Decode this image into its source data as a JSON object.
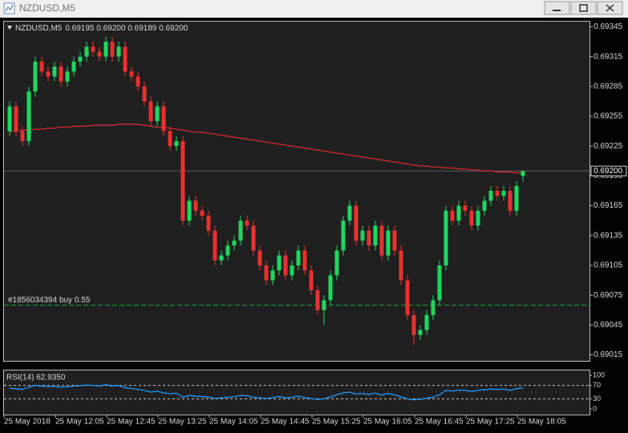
{
  "chart_data": {
    "type": "candlestick",
    "title": "NZDUSD,M5",
    "header_ohlc": "0.69195 0.69200 0.69189 0.69200",
    "categories": [
      "25 May 2018",
      null,
      null,
      null,
      null,
      null,
      null,
      null,
      "25 May 12:05",
      null,
      null,
      null,
      null,
      null,
      null,
      null,
      "25 May 12:45",
      null,
      null,
      null,
      null,
      null,
      null,
      null,
      "25 May 13:25",
      null,
      null,
      null,
      null,
      null,
      null,
      null,
      "25 May 14:05",
      null,
      null,
      null,
      null,
      null,
      null,
      null,
      "25 May 14:45",
      null,
      null,
      null,
      null,
      null,
      null,
      null,
      "25 May 15:25",
      null,
      null,
      null,
      null,
      null,
      null,
      null,
      "25 May 16:05",
      null,
      null,
      null,
      null,
      null,
      null,
      null,
      "25 May 16:45",
      null,
      null,
      null,
      null,
      null,
      null,
      null,
      "25 May 17:25",
      null,
      null,
      null,
      null,
      null,
      null,
      null,
      "25 May 18:05"
    ],
    "open": [
      0.6924,
      0.69265,
      0.6924,
      0.6923,
      0.6928,
      0.6931,
      0.693,
      0.69295,
      0.69305,
      0.6929,
      0.693,
      0.6931,
      0.69315,
      0.69325,
      0.6932,
      0.69315,
      0.6933,
      0.69315,
      0.69325,
      0.693,
      0.69295,
      0.69285,
      0.6927,
      0.6925,
      0.69265,
      0.6924,
      0.69225,
      0.6923,
      0.6915,
      0.6917,
      0.6916,
      0.69155,
      0.6914,
      0.6911,
      0.69115,
      0.69125,
      0.6913,
      0.6915,
      0.69145,
      0.6912,
      0.69105,
      0.6909,
      0.691,
      0.69115,
      0.69095,
      0.69105,
      0.6912,
      0.691,
      0.6908,
      0.6906,
      0.6907,
      0.69095,
      0.6912,
      0.6915,
      0.69165,
      0.6913,
      0.6914,
      0.69125,
      0.69145,
      0.69115,
      0.6914,
      0.6912,
      0.6909,
      0.69055,
      0.69035,
      0.6904,
      0.69055,
      0.6907,
      0.69105,
      0.6916,
      0.6915,
      0.69165,
      0.6916,
      0.69145,
      0.6916,
      0.6917,
      0.6918,
      0.69175,
      0.6918,
      0.6916,
      0.69195
    ],
    "high": [
      0.6927,
      0.6927,
      0.69245,
      0.69285,
      0.69315,
      0.69315,
      0.69305,
      0.6931,
      0.6931,
      0.69305,
      0.69315,
      0.6932,
      0.6933,
      0.6933,
      0.69325,
      0.69335,
      0.69335,
      0.6933,
      0.6933,
      0.69305,
      0.693,
      0.6929,
      0.69275,
      0.6927,
      0.6927,
      0.69245,
      0.69235,
      0.69235,
      0.69175,
      0.69175,
      0.69165,
      0.6916,
      0.69145,
      0.6912,
      0.6913,
      0.69135,
      0.69155,
      0.69155,
      0.6915,
      0.69125,
      0.6911,
      0.69105,
      0.6912,
      0.6912,
      0.6911,
      0.69125,
      0.69125,
      0.69105,
      0.69085,
      0.69075,
      0.691,
      0.69125,
      0.69155,
      0.6917,
      0.6917,
      0.69145,
      0.69145,
      0.6915,
      0.6915,
      0.69145,
      0.69145,
      0.69125,
      0.69095,
      0.6906,
      0.69045,
      0.6906,
      0.69075,
      0.6911,
      0.69165,
      0.69165,
      0.6917,
      0.6917,
      0.69165,
      0.69165,
      0.69175,
      0.69185,
      0.69185,
      0.69185,
      0.69185,
      0.6919,
      0.692
    ],
    "low": [
      0.69235,
      0.69235,
      0.69225,
      0.69225,
      0.69275,
      0.69295,
      0.6929,
      0.6929,
      0.69285,
      0.69285,
      0.69295,
      0.69305,
      0.6931,
      0.69315,
      0.6931,
      0.6931,
      0.6931,
      0.6931,
      0.69295,
      0.6929,
      0.6928,
      0.69265,
      0.69245,
      0.69245,
      0.69235,
      0.6922,
      0.6922,
      0.69145,
      0.69145,
      0.69155,
      0.6915,
      0.69135,
      0.69105,
      0.69105,
      0.6911,
      0.6912,
      0.69125,
      0.6914,
      0.69115,
      0.691,
      0.69085,
      0.69085,
      0.69095,
      0.6909,
      0.6909,
      0.691,
      0.69095,
      0.69075,
      0.69055,
      0.69045,
      0.69065,
      0.6909,
      0.69115,
      0.69145,
      0.69125,
      0.69125,
      0.6912,
      0.6912,
      0.6911,
      0.6911,
      0.69115,
      0.69085,
      0.6905,
      0.69025,
      0.6903,
      0.69035,
      0.6905,
      0.69065,
      0.691,
      0.69145,
      0.69145,
      0.69155,
      0.6914,
      0.6914,
      0.69155,
      0.69165,
      0.6917,
      0.6917,
      0.69155,
      0.69155,
      0.69189
    ],
    "close": [
      0.69265,
      0.6924,
      0.6923,
      0.6928,
      0.6931,
      0.693,
      0.69295,
      0.69305,
      0.6929,
      0.693,
      0.6931,
      0.69315,
      0.69325,
      0.6932,
      0.69315,
      0.6933,
      0.69315,
      0.69325,
      0.693,
      0.69295,
      0.69285,
      0.6927,
      0.6925,
      0.69265,
      0.6924,
      0.69225,
      0.6923,
      0.6915,
      0.6917,
      0.6916,
      0.69155,
      0.6914,
      0.6911,
      0.69115,
      0.69125,
      0.6913,
      0.6915,
      0.69145,
      0.6912,
      0.69105,
      0.6909,
      0.691,
      0.69115,
      0.69095,
      0.69105,
      0.6912,
      0.691,
      0.6908,
      0.6906,
      0.6907,
      0.69095,
      0.6912,
      0.6915,
      0.69165,
      0.6913,
      0.6914,
      0.69125,
      0.69145,
      0.69115,
      0.6914,
      0.6912,
      0.6909,
      0.69055,
      0.69035,
      0.6904,
      0.69055,
      0.6907,
      0.69105,
      0.6916,
      0.6915,
      0.69165,
      0.6916,
      0.69145,
      0.6916,
      0.6917,
      0.6918,
      0.69175,
      0.6918,
      0.6916,
      0.69185,
      0.692
    ],
    "up_color": "#1ed760",
    "down_color": "#e8312f",
    "ylim": [
      0.69009,
      0.69351
    ],
    "yticks": [
      0.69345,
      0.69315,
      0.69285,
      0.69255,
      0.69225,
      0.69195,
      0.69165,
      0.69135,
      0.69105,
      0.69075,
      0.69045,
      0.69015
    ],
    "last_price": {
      "value": 0.692,
      "label": "0.69200"
    },
    "ma": {
      "color": "#d42a2a",
      "values": [
        0.6924,
        0.6924,
        0.69241,
        0.69241,
        0.69242,
        0.69242,
        0.69243,
        0.69243,
        0.69244,
        0.69244,
        0.69245,
        0.69245,
        0.69245,
        0.69246,
        0.69246,
        0.69246,
        0.69246,
        0.69247,
        0.69247,
        0.69247,
        0.69247,
        0.69246,
        0.69245,
        0.69244,
        0.69244,
        0.69243,
        0.69242,
        0.69241,
        0.6924,
        0.69239,
        0.69239,
        0.69238,
        0.69237,
        0.69236,
        0.69235,
        0.69234,
        0.69233,
        0.69232,
        0.69231,
        0.6923,
        0.69229,
        0.69228,
        0.69227,
        0.69226,
        0.69225,
        0.69224,
        0.69223,
        0.69222,
        0.69221,
        0.6922,
        0.69219,
        0.69218,
        0.69217,
        0.69216,
        0.69215,
        0.69214,
        0.69213,
        0.69212,
        0.69211,
        0.6921,
        0.69209,
        0.69208,
        0.69207,
        0.69206,
        0.69205,
        0.69205,
        0.69204,
        0.69204,
        0.69203,
        0.69203,
        0.69202,
        0.69202,
        0.69201,
        0.69201,
        0.692,
        0.692,
        0.69199,
        0.69199,
        0.69199,
        0.69198,
        0.69198
      ]
    },
    "order": {
      "label": "#1856034394 buy 0.55",
      "price": 0.69065,
      "color": "#1fa83a"
    },
    "rsi": {
      "title": "RSI(14) 62.9350",
      "color": "#1e9bff",
      "ylim": [
        0,
        100
      ],
      "yticks": [
        100,
        70,
        30,
        0
      ],
      "levels": [
        70,
        30
      ],
      "values": [
        62,
        60,
        58,
        65,
        70,
        68,
        66,
        67,
        64,
        66,
        68,
        69,
        71,
        70,
        68,
        72,
        68,
        70,
        63,
        61,
        58,
        55,
        50,
        53,
        48,
        45,
        47,
        35,
        40,
        38,
        37,
        35,
        31,
        33,
        35,
        36,
        40,
        39,
        35,
        33,
        31,
        34,
        37,
        33,
        35,
        38,
        34,
        31,
        28,
        30,
        36,
        42,
        48,
        50,
        44,
        46,
        43,
        47,
        41,
        46,
        42,
        36,
        30,
        27,
        29,
        32,
        35,
        42,
        55,
        53,
        56,
        55,
        52,
        55,
        57,
        59,
        58,
        59,
        55,
        60,
        62.935
      ]
    }
  }
}
